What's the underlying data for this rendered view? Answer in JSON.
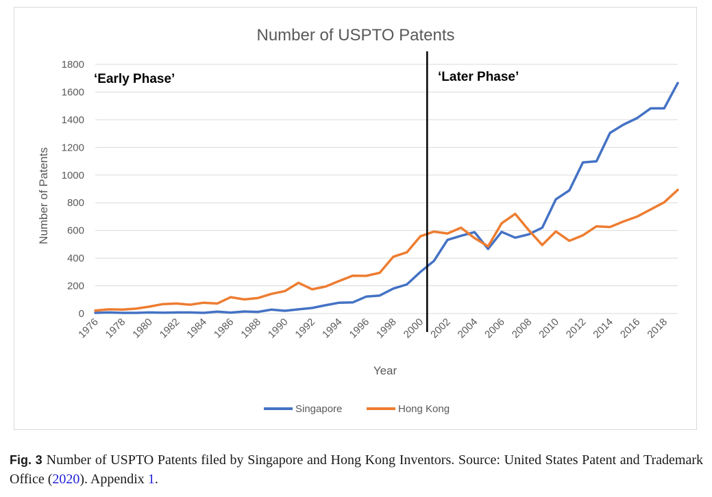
{
  "chart_data": {
    "type": "line",
    "title": "Number of USPTO Patents",
    "xlabel": "Year",
    "ylabel": "Number of Patents",
    "ylim": [
      0,
      1800
    ],
    "yticks": [
      0,
      200,
      400,
      600,
      800,
      1000,
      1200,
      1400,
      1600,
      1800
    ],
    "x_tick_labels": [
      "1976",
      "1978",
      "1980",
      "1982",
      "1984",
      "1986",
      "1988",
      "1990",
      "1992",
      "1994",
      "1996",
      "1998",
      "2000",
      "2002",
      "2004",
      "2006",
      "2008",
      "2010",
      "2012",
      "2014",
      "2016",
      "2018"
    ],
    "x": [
      1976,
      1977,
      1978,
      1979,
      1980,
      1981,
      1982,
      1983,
      1984,
      1985,
      1986,
      1987,
      1988,
      1989,
      1990,
      1991,
      1992,
      1993,
      1994,
      1995,
      1996,
      1997,
      1998,
      1999,
      2000,
      2001,
      2002,
      2003,
      2004,
      2005,
      2006,
      2007,
      2008,
      2009,
      2010,
      2011,
      2012,
      2013,
      2014,
      2015,
      2016,
      2017,
      2018,
      2019
    ],
    "grid": true,
    "legend_position": "bottom",
    "series": [
      {
        "name": "Singapore",
        "color": "#4472c4",
        "values": [
          5,
          8,
          5,
          5,
          8,
          6,
          8,
          8,
          5,
          14,
          7,
          15,
          12,
          28,
          20,
          30,
          40,
          60,
          78,
          80,
          122,
          130,
          180,
          210,
          300,
          380,
          532,
          562,
          588,
          467,
          590,
          548,
          572,
          620,
          825,
          890,
          1092,
          1100,
          1305,
          1365,
          1412,
          1482,
          1482,
          1665
        ]
      },
      {
        "name": "Hong Kong",
        "color": "#ed7d31",
        "values": [
          22,
          30,
          28,
          35,
          50,
          68,
          72,
          64,
          78,
          72,
          118,
          102,
          112,
          142,
          162,
          222,
          175,
          195,
          235,
          273,
          272,
          294,
          410,
          442,
          558,
          592,
          578,
          620,
          545,
          485,
          652,
          720,
          602,
          495,
          593,
          525,
          565,
          630,
          625,
          665,
          700,
          752,
          803,
          893
        ]
      }
    ],
    "annotations": [
      {
        "type": "vertical-line",
        "x": 2000.5
      },
      {
        "type": "text",
        "text": "‘Early Phase’",
        "position": "top-left"
      },
      {
        "type": "text",
        "text": "‘Later Phase’",
        "position": "top-right-of-divider"
      }
    ]
  },
  "caption": {
    "label": "Fig. 3",
    "text_before": "Number of USPTO Patents filed by Singapore and Hong Kong Inventors. Source: United States Patent and Trademark Office (",
    "citation": "2020",
    "text_middle": "). Appendix ",
    "appendix_ref": "1",
    "text_after": "."
  }
}
